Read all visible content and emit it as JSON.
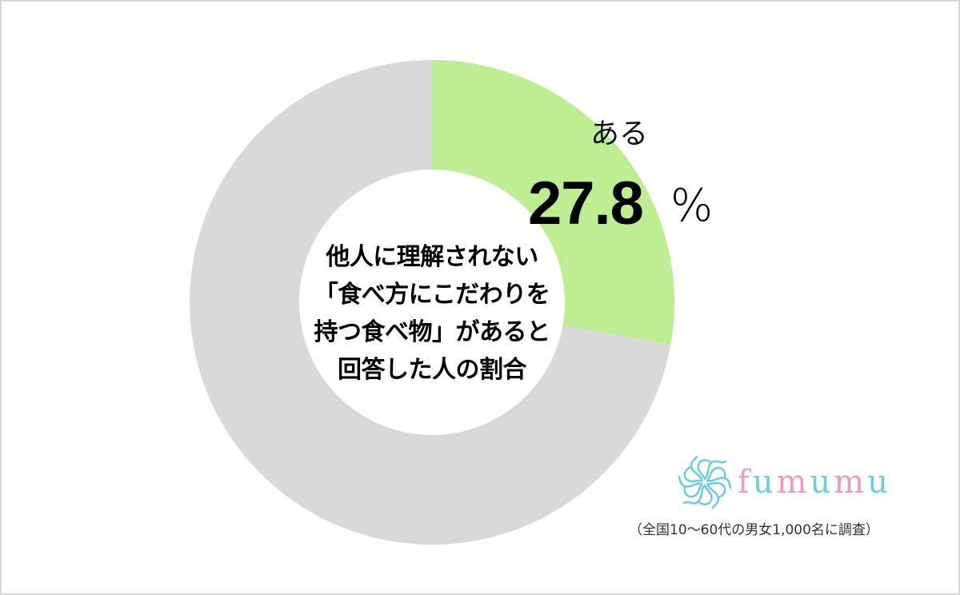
{
  "chart_data": {
    "type": "pie",
    "variant": "donut",
    "title": "他人に理解されない「食べ方にこだわりを持つ食べ物」があると回答した人の割合",
    "title_lines": [
      "他人に理解されない",
      "「食べ方にこだわりを",
      "持つ食べ物」があると",
      "回答した人の割合"
    ],
    "slices": [
      {
        "label": "ある",
        "value": 27.8,
        "color": "#bdee91",
        "labeled": true
      },
      {
        "label": "",
        "value": 72.2,
        "color": "#d9d9d9",
        "labeled": false
      }
    ],
    "unit": "%",
    "legend": "none",
    "start_angle_deg": 0,
    "direction": "clockwise"
  },
  "annotation": {
    "slice_name": "ある",
    "slice_value": "27.8",
    "slice_unit": "%"
  },
  "logo": {
    "letters": [
      {
        "ch": "f",
        "color": "#ef9bc0"
      },
      {
        "ch": "u",
        "color": "#6ccddd"
      },
      {
        "ch": "m",
        "color": "#ef9bc0"
      },
      {
        "ch": "u",
        "color": "#6ccddd"
      },
      {
        "ch": "m",
        "color": "#ef9bc0"
      },
      {
        "ch": "u",
        "color": "#6ccddd"
      }
    ],
    "text": "fumumu",
    "mark_color": "#6ccddd",
    "icon": "flower-logo-icon"
  },
  "footnote": "（全国10～60代の男女1,000名に調査）"
}
